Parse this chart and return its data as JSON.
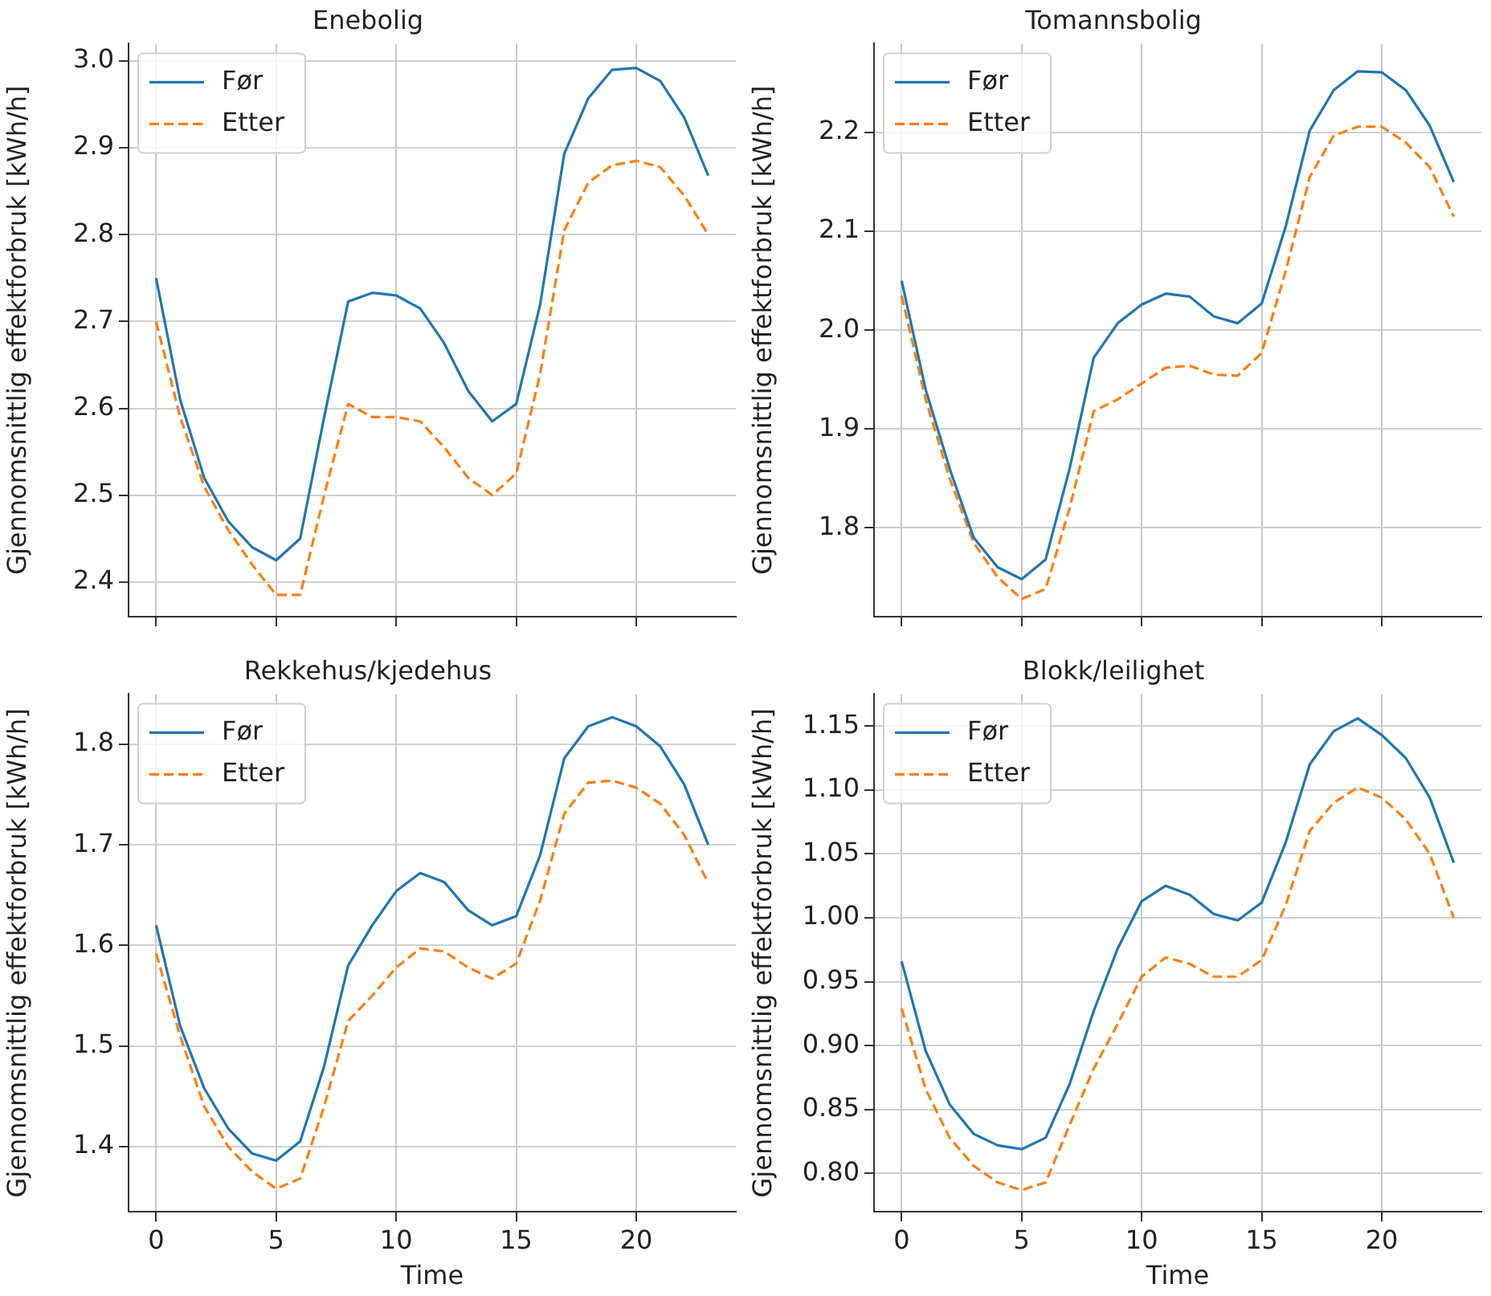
{
  "chart_data": [
    {
      "type": "line",
      "title": "Enebolig",
      "ylabel": "Gjennomsnittlig effektforbruk [kWh/h]",
      "x": [
        0,
        1,
        2,
        3,
        4,
        5,
        6,
        7,
        8,
        9,
        10,
        11,
        12,
        13,
        14,
        15,
        16,
        17,
        18,
        19,
        20,
        21,
        22,
        23
      ],
      "xlim": [
        -1.15,
        24.15
      ],
      "xticks": [
        {
          "value": 0,
          "label": null
        },
        {
          "value": 5,
          "label": null
        },
        {
          "value": 10,
          "label": null
        },
        {
          "value": 15,
          "label": null
        },
        {
          "value": 20,
          "label": null
        }
      ],
      "ylim": [
        2.36,
        3.02
      ],
      "yticks": [
        2.4,
        2.5,
        2.6,
        2.7,
        2.8,
        2.9,
        {
          "value": 3,
          "label": "3.0"
        }
      ],
      "tick_labels": "y",
      "grid": true,
      "legend": "top left",
      "series": [
        {
          "name": "Før",
          "color": "#1f77b4",
          "line_style": "solid",
          "values": [
            2.75,
            2.61,
            2.52,
            2.47,
            2.44,
            2.425,
            2.45,
            2.59,
            2.723,
            2.733,
            2.73,
            2.715,
            2.675,
            2.62,
            2.585,
            2.605,
            2.72,
            2.893,
            2.957,
            2.99,
            2.992,
            2.977,
            2.935,
            2.868
          ]
        },
        {
          "name": "Etter",
          "color": "#ff7f0e",
          "line_style": "dashed",
          "values": [
            2.7,
            2.59,
            2.51,
            2.46,
            2.42,
            2.385,
            2.385,
            2.5,
            2.605,
            2.59,
            2.59,
            2.585,
            2.555,
            2.52,
            2.5,
            2.525,
            2.64,
            2.805,
            2.86,
            2.88,
            2.885,
            2.878,
            2.845,
            2.8
          ]
        }
      ]
    },
    {
      "type": "line",
      "title": "Tomannsbolig",
      "ylabel": "Gjennomsnittlig effektforbruk [kWh/h]",
      "x": [
        0,
        1,
        2,
        3,
        4,
        5,
        6,
        7,
        8,
        9,
        10,
        11,
        12,
        13,
        14,
        15,
        16,
        17,
        18,
        19,
        20,
        21,
        22,
        23
      ],
      "xlim": [
        -1.15,
        24.15
      ],
      "xticks": [
        {
          "value": 0,
          "label": null
        },
        {
          "value": 5,
          "label": null
        },
        {
          "value": 10,
          "label": null
        },
        {
          "value": 15,
          "label": null
        },
        {
          "value": 20,
          "label": null
        }
      ],
      "ylim": [
        1.71,
        2.29
      ],
      "yticks": [
        1.8,
        1.9,
        {
          "value": 2,
          "label": "2.0"
        },
        2.1,
        2.2
      ],
      "tick_labels": "y",
      "grid": true,
      "legend": "top left",
      "series": [
        {
          "name": "Før",
          "color": "#1f77b4",
          "line_style": "solid",
          "values": [
            2.05,
            1.94,
            1.86,
            1.79,
            1.76,
            1.748,
            1.768,
            1.86,
            1.972,
            2.007,
            2.026,
            2.037,
            2.034,
            2.014,
            2.007,
            2.027,
            2.105,
            2.202,
            2.243,
            2.262,
            2.261,
            2.243,
            2.207,
            2.15
          ]
        },
        {
          "name": "Etter",
          "color": "#ff7f0e",
          "line_style": "dashed",
          "values": [
            2.035,
            1.93,
            1.85,
            1.785,
            1.75,
            1.728,
            1.738,
            1.82,
            1.918,
            1.93,
            1.946,
            1.962,
            1.964,
            1.955,
            1.954,
            1.977,
            2.06,
            2.155,
            2.197,
            2.206,
            2.206,
            2.19,
            2.165,
            2.115
          ]
        }
      ]
    },
    {
      "type": "line",
      "title": "Rekkehus/kjedehus",
      "xlabel": "Time",
      "ylabel": "Gjennomsnittlig effektforbruk [kWh/h]",
      "x": [
        0,
        1,
        2,
        3,
        4,
        5,
        6,
        7,
        8,
        9,
        10,
        11,
        12,
        13,
        14,
        15,
        16,
        17,
        18,
        19,
        20,
        21,
        22,
        23
      ],
      "xlim": [
        -1.15,
        24.15
      ],
      "xticks": [
        0,
        5,
        10,
        15,
        20
      ],
      "ylim": [
        1.335,
        1.85
      ],
      "yticks": [
        1.4,
        1.5,
        1.6,
        1.7,
        1.8
      ],
      "grid": true,
      "legend": "top left",
      "series": [
        {
          "name": "Før",
          "color": "#1f77b4",
          "line_style": "solid",
          "values": [
            1.62,
            1.52,
            1.458,
            1.418,
            1.393,
            1.386,
            1.405,
            1.48,
            1.58,
            1.62,
            1.654,
            1.672,
            1.663,
            1.635,
            1.62,
            1.629,
            1.69,
            1.786,
            1.818,
            1.827,
            1.818,
            1.798,
            1.76,
            1.7
          ]
        },
        {
          "name": "Etter",
          "color": "#ff7f0e",
          "line_style": "dashed",
          "values": [
            1.592,
            1.51,
            1.44,
            1.4,
            1.375,
            1.358,
            1.368,
            1.44,
            1.525,
            1.55,
            1.578,
            1.597,
            1.594,
            1.578,
            1.567,
            1.582,
            1.645,
            1.731,
            1.762,
            1.764,
            1.757,
            1.741,
            1.71,
            1.662
          ]
        }
      ]
    },
    {
      "type": "line",
      "title": "Blokk/leilighet",
      "xlabel": "Time",
      "ylabel": "Gjennomsnittlig effektforbruk [kWh/h]",
      "x": [
        0,
        1,
        2,
        3,
        4,
        5,
        6,
        7,
        8,
        9,
        10,
        11,
        12,
        13,
        14,
        15,
        16,
        17,
        18,
        19,
        20,
        21,
        22,
        23
      ],
      "xlim": [
        -1.15,
        24.15
      ],
      "xticks": [
        0,
        5,
        10,
        15,
        20
      ],
      "ylim": [
        0.77,
        1.175
      ],
      "yticks": [
        {
          "value": 0.8,
          "label": "0.80"
        },
        {
          "value": 0.85,
          "label": "0.85"
        },
        {
          "value": 0.9,
          "label": "0.90"
        },
        {
          "value": 0.95,
          "label": "0.95"
        },
        {
          "value": 1.0,
          "label": "1.00"
        },
        {
          "value": 1.05,
          "label": "1.05"
        },
        {
          "value": 1.1,
          "label": "1.10"
        },
        {
          "value": 1.15,
          "label": "1.15"
        }
      ],
      "grid": true,
      "legend": "top left",
      "series": [
        {
          "name": "Før",
          "color": "#1f77b4",
          "line_style": "solid",
          "values": [
            0.966,
            0.896,
            0.854,
            0.831,
            0.822,
            0.819,
            0.828,
            0.87,
            0.927,
            0.976,
            1.013,
            1.025,
            1.018,
            1.003,
            0.998,
            1.012,
            1.059,
            1.12,
            1.146,
            1.156,
            1.143,
            1.125,
            1.094,
            1.043
          ]
        },
        {
          "name": "Etter",
          "color": "#ff7f0e",
          "line_style": "dashed",
          "values": [
            0.929,
            0.866,
            0.828,
            0.806,
            0.793,
            0.787,
            0.793,
            0.838,
            0.882,
            0.917,
            0.954,
            0.969,
            0.964,
            0.954,
            0.954,
            0.967,
            1.01,
            1.068,
            1.09,
            1.102,
            1.094,
            1.077,
            1.05,
            1.0
          ]
        }
      ]
    }
  ]
}
